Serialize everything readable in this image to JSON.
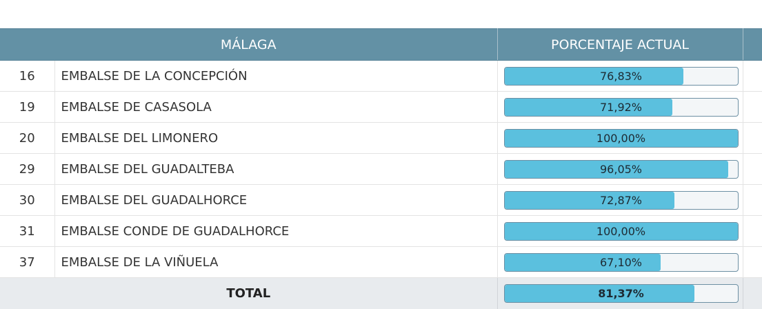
{
  "header": {
    "province": "MÁLAGA",
    "percentage_label": "PORCENTAJE ACTUAL"
  },
  "rows": [
    {
      "id": "16",
      "name": "EMBALSE DE LA CONCEPCIÓN",
      "pct_text": "76,83%",
      "pct": 76.83
    },
    {
      "id": "19",
      "name": "EMBALSE DE CASASOLA",
      "pct_text": "71,92%",
      "pct": 71.92
    },
    {
      "id": "20",
      "name": "EMBALSE DEL LIMONERO",
      "pct_text": "100,00%",
      "pct": 100.0
    },
    {
      "id": "29",
      "name": "EMBALSE DEL GUADALTEBA",
      "pct_text": "96,05%",
      "pct": 96.05
    },
    {
      "id": "30",
      "name": "EMBALSE DEL GUADALHORCE",
      "pct_text": "72,87%",
      "pct": 72.87
    },
    {
      "id": "31",
      "name": "EMBALSE CONDE DE GUADALHORCE",
      "pct_text": "100,00%",
      "pct": 100.0
    },
    {
      "id": "37",
      "name": "EMBALSE DE LA VIÑUELA",
      "pct_text": "67,10%",
      "pct": 67.1
    }
  ],
  "total": {
    "label": "TOTAL",
    "pct_text": "81,37%",
    "pct": 81.37
  },
  "colors": {
    "header_bg": "#6391a5",
    "bar_fill": "#5bc0de",
    "total_bg": "#e8ebee"
  }
}
